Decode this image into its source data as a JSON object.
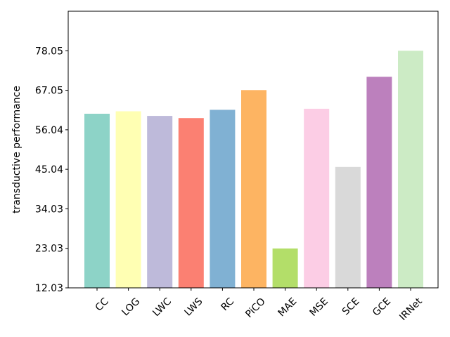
{
  "chart_data": {
    "type": "bar",
    "title": "",
    "xlabel": "",
    "ylabel": "transductive performance",
    "categories": [
      "CC",
      "LOG",
      "LWC",
      "LWS",
      "RC",
      "PiCO",
      "MAE",
      "MSE",
      "SCE",
      "GCE",
      "IRNet"
    ],
    "values": [
      60.5,
      61.2,
      59.9,
      59.3,
      61.6,
      67.1,
      23.0,
      61.9,
      45.7,
      70.8,
      78.05
    ],
    "colors": [
      "#8dd3c7",
      "#ffffb3",
      "#bebada",
      "#fb8072",
      "#80b1d3",
      "#fdb462",
      "#b3de69",
      "#fccde5",
      "#d9d9d9",
      "#bc80bd",
      "#ccebc5"
    ],
    "yticks": [
      "12.03",
      "23.03",
      "34.03",
      "45.04",
      "56.04",
      "67.05",
      "78.05"
    ],
    "ylim": [
      12.03,
      89.05
    ],
    "grid": false,
    "legend": "none"
  }
}
